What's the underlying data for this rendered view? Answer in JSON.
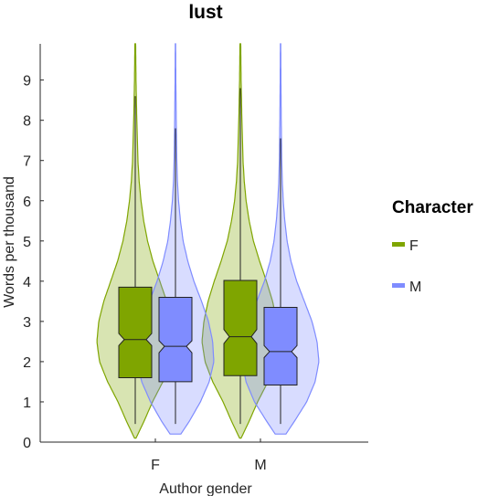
{
  "chart_data": {
    "type": "violin+boxplot",
    "title": "lust",
    "xlabel": "Author gender",
    "ylabel": "Words per thousand",
    "categories": [
      "F",
      "M"
    ],
    "ylim": [
      0,
      9.9
    ],
    "yticks": [
      0,
      1,
      2,
      3,
      4,
      5,
      6,
      7,
      8,
      9
    ],
    "grid": false,
    "legend": {
      "title": "Character",
      "placement": "right",
      "entries": [
        {
          "label": "F",
          "color": "#7fa500"
        },
        {
          "label": "M",
          "color": "#7f8cff"
        }
      ]
    },
    "series": [
      {
        "name": "F",
        "color": "#7fa500",
        "groups": [
          {
            "category": "F",
            "whisker_low": 0.45,
            "q1": 1.6,
            "median": 2.55,
            "q3": 3.85,
            "whisker_high": 8.6,
            "violin_min": 0.1,
            "violin_max": 9.9,
            "notch_low": 2.4,
            "notch_high": 2.7,
            "density": [
              [
                0.1,
                0.02
              ],
              [
                0.5,
                0.22
              ],
              [
                1.0,
                0.45
              ],
              [
                1.5,
                0.72
              ],
              [
                2.0,
                0.93
              ],
              [
                2.5,
                1.0
              ],
              [
                3.0,
                0.95
              ],
              [
                3.5,
                0.82
              ],
              [
                4.0,
                0.64
              ],
              [
                4.5,
                0.46
              ],
              [
                5.0,
                0.32
              ],
              [
                5.5,
                0.22
              ],
              [
                6.0,
                0.15
              ],
              [
                6.5,
                0.1
              ],
              [
                7.0,
                0.07
              ],
              [
                8.0,
                0.04
              ],
              [
                9.0,
                0.02
              ],
              [
                9.9,
                0.01
              ]
            ]
          },
          {
            "category": "M",
            "whisker_low": 0.45,
            "q1": 1.65,
            "median": 2.62,
            "q3": 4.02,
            "whisker_high": 8.8,
            "violin_min": 0.1,
            "violin_max": 9.9,
            "notch_low": 2.45,
            "notch_high": 2.8,
            "density": [
              [
                0.1,
                0.02
              ],
              [
                0.5,
                0.22
              ],
              [
                1.0,
                0.45
              ],
              [
                1.5,
                0.72
              ],
              [
                2.0,
                0.92
              ],
              [
                2.5,
                1.0
              ],
              [
                3.0,
                0.95
              ],
              [
                3.5,
                0.84
              ],
              [
                4.0,
                0.68
              ],
              [
                4.5,
                0.5
              ],
              [
                5.0,
                0.34
              ],
              [
                5.5,
                0.23
              ],
              [
                6.0,
                0.15
              ],
              [
                6.5,
                0.1
              ],
              [
                7.0,
                0.07
              ],
              [
                8.0,
                0.04
              ],
              [
                9.0,
                0.02
              ],
              [
                9.9,
                0.01
              ]
            ]
          }
        ]
      },
      {
        "name": "M",
        "color": "#7f8cff",
        "groups": [
          {
            "category": "F",
            "whisker_low": 0.45,
            "q1": 1.5,
            "median": 2.38,
            "q3": 3.6,
            "whisker_high": 7.8,
            "violin_min": 0.2,
            "violin_max": 9.9,
            "notch_low": 2.22,
            "notch_high": 2.52,
            "density": [
              [
                0.2,
                0.14
              ],
              [
                0.5,
                0.35
              ],
              [
                1.0,
                0.65
              ],
              [
                1.5,
                0.88
              ],
              [
                2.0,
                1.0
              ],
              [
                2.5,
                0.97
              ],
              [
                3.0,
                0.86
              ],
              [
                3.5,
                0.68
              ],
              [
                4.0,
                0.48
              ],
              [
                4.5,
                0.32
              ],
              [
                5.0,
                0.2
              ],
              [
                5.5,
                0.13
              ],
              [
                6.0,
                0.08
              ],
              [
                6.5,
                0.05
              ],
              [
                7.0,
                0.035
              ],
              [
                8.0,
                0.02
              ],
              [
                9.0,
                0.01
              ],
              [
                9.9,
                0.005
              ]
            ]
          },
          {
            "category": "M",
            "whisker_low": 0.45,
            "q1": 1.42,
            "median": 2.25,
            "q3": 3.35,
            "whisker_high": 7.55,
            "violin_min": 0.2,
            "violin_max": 9.9,
            "notch_low": 2.1,
            "notch_high": 2.4,
            "density": [
              [
                0.2,
                0.14
              ],
              [
                0.5,
                0.35
              ],
              [
                1.0,
                0.68
              ],
              [
                1.5,
                0.9
              ],
              [
                2.0,
                1.0
              ],
              [
                2.5,
                0.95
              ],
              [
                3.0,
                0.82
              ],
              [
                3.5,
                0.62
              ],
              [
                4.0,
                0.42
              ],
              [
                4.5,
                0.27
              ],
              [
                5.0,
                0.17
              ],
              [
                5.5,
                0.11
              ],
              [
                6.0,
                0.07
              ],
              [
                6.5,
                0.045
              ],
              [
                7.0,
                0.03
              ],
              [
                8.0,
                0.018
              ],
              [
                9.0,
                0.01
              ],
              [
                9.9,
                0.005
              ]
            ]
          }
        ]
      }
    ]
  }
}
